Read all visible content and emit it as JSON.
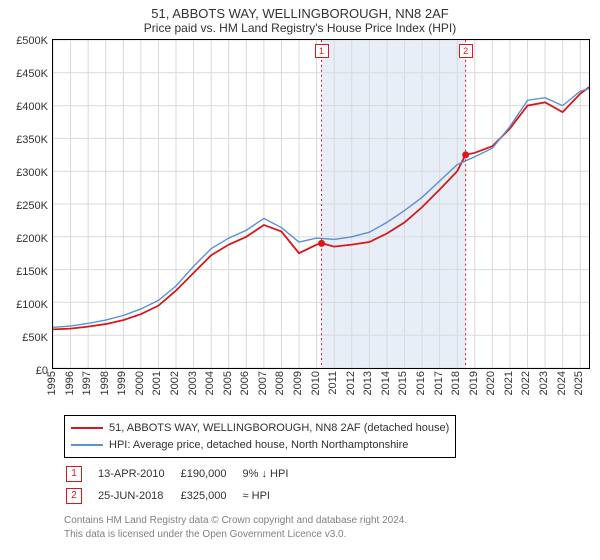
{
  "title": "51, ABBOTS WAY, WELLINGBOROUGH, NN8 2AF",
  "subtitle": "Price paid vs. HM Land Registry's House Price Index (HPI)",
  "chart": {
    "type": "line",
    "background_color": "#ffffff",
    "grid_color": "#d9d9d9",
    "axis_color": "#000000",
    "font_size_title": 13,
    "font_size_axis": 11,
    "x": {
      "min": 1995,
      "max": 2025.5,
      "ticks": [
        1995,
        1996,
        1997,
        1998,
        1999,
        2000,
        2001,
        2002,
        2003,
        2004,
        2005,
        2006,
        2007,
        2008,
        2009,
        2010,
        2011,
        2012,
        2013,
        2014,
        2015,
        2016,
        2017,
        2018,
        2019,
        2020,
        2021,
        2022,
        2023,
        2024,
        2025
      ],
      "tick_labels": [
        "1995",
        "1996",
        "1997",
        "1998",
        "1999",
        "2000",
        "2001",
        "2002",
        "2003",
        "2004",
        "2005",
        "2006",
        "2007",
        "2008",
        "2009",
        "2010",
        "2011",
        "2012",
        "2013",
        "2014",
        "2015",
        "2016",
        "2017",
        "2018",
        "2019",
        "2020",
        "2021",
        "2022",
        "2023",
        "2024",
        "2025"
      ]
    },
    "y": {
      "min": 0,
      "max": 500000,
      "ticks": [
        0,
        50000,
        100000,
        150000,
        200000,
        250000,
        300000,
        350000,
        400000,
        450000,
        500000
      ],
      "tick_labels": [
        "£0",
        "£50K",
        "£100K",
        "£150K",
        "£200K",
        "£250K",
        "£300K",
        "£350K",
        "£400K",
        "£450K",
        "£500K"
      ],
      "label_prefix": "£"
    },
    "shading": {
      "color": "#e7eef8",
      "from": 2010.3,
      "to": 2018.5
    },
    "series": [
      {
        "id": "price_paid",
        "label": "51, ABBOTS WAY, WELLINGBOROUGH, NN8 2AF (detached house)",
        "color": "#d7191c",
        "width": 1.8,
        "data": [
          [
            1995,
            59000
          ],
          [
            1996,
            60000
          ],
          [
            1997,
            63000
          ],
          [
            1998,
            67000
          ],
          [
            1999,
            73000
          ],
          [
            2000,
            82000
          ],
          [
            2001,
            95000
          ],
          [
            2002,
            118000
          ],
          [
            2003,
            145000
          ],
          [
            2004,
            172000
          ],
          [
            2005,
            188000
          ],
          [
            2006,
            200000
          ],
          [
            2007,
            218000
          ],
          [
            2008,
            208000
          ],
          [
            2009,
            175000
          ],
          [
            2010,
            188000
          ],
          [
            2010.3,
            190000
          ],
          [
            2011,
            185000
          ],
          [
            2012,
            188000
          ],
          [
            2013,
            192000
          ],
          [
            2014,
            205000
          ],
          [
            2015,
            222000
          ],
          [
            2016,
            245000
          ],
          [
            2017,
            272000
          ],
          [
            2018,
            300000
          ],
          [
            2018.48,
            325000
          ],
          [
            2019,
            328000
          ],
          [
            2020,
            338000
          ],
          [
            2021,
            365000
          ],
          [
            2022,
            400000
          ],
          [
            2023,
            405000
          ],
          [
            2024,
            390000
          ],
          [
            2025,
            418000
          ],
          [
            2025.5,
            428000
          ]
        ]
      },
      {
        "id": "hpi",
        "label": "HPI: Average price, detached house, North Northamptonshire",
        "color": "#5b8fd6",
        "width": 1.4,
        "data": [
          [
            1995,
            62000
          ],
          [
            1996,
            64000
          ],
          [
            1997,
            68000
          ],
          [
            1998,
            73000
          ],
          [
            1999,
            80000
          ],
          [
            2000,
            90000
          ],
          [
            2001,
            103000
          ],
          [
            2002,
            125000
          ],
          [
            2003,
            155000
          ],
          [
            2004,
            182000
          ],
          [
            2005,
            198000
          ],
          [
            2006,
            210000
          ],
          [
            2007,
            228000
          ],
          [
            2008,
            214000
          ],
          [
            2009,
            192000
          ],
          [
            2010,
            198000
          ],
          [
            2011,
            196000
          ],
          [
            2012,
            200000
          ],
          [
            2013,
            207000
          ],
          [
            2014,
            222000
          ],
          [
            2015,
            240000
          ],
          [
            2016,
            260000
          ],
          [
            2017,
            285000
          ],
          [
            2018,
            310000
          ],
          [
            2019,
            322000
          ],
          [
            2020,
            335000
          ],
          [
            2021,
            368000
          ],
          [
            2022,
            408000
          ],
          [
            2023,
            412000
          ],
          [
            2024,
            400000
          ],
          [
            2025,
            422000
          ],
          [
            2025.5,
            426000
          ]
        ]
      }
    ],
    "sale_markers": [
      {
        "n": "1",
        "date": "13-APR-2010",
        "x": 2010.28,
        "price": 190000,
        "price_label": "£190,000",
        "delta": "9% ↓ HPI",
        "color": "#d7191c"
      },
      {
        "n": "2",
        "date": "25-JUN-2018",
        "x": 2018.48,
        "price": 325000,
        "price_label": "£325,000",
        "delta": "≈ HPI",
        "color": "#d7191c"
      }
    ]
  },
  "legend_border_color": "#000000",
  "footer_line1": "Contains HM Land Registry data © Crown copyright and database right 2024.",
  "footer_line2": "This data is licensed under the Open Government Licence v3.0.",
  "footer_color": "#808080"
}
